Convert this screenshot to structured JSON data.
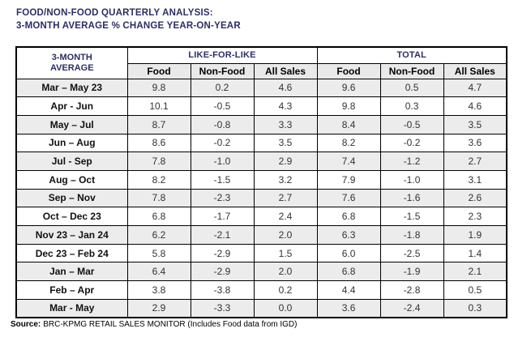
{
  "title": {
    "line1": "FOOD/NON-FOOD QUARTERLY ANALYSIS:",
    "line2": "3-MONTH AVERAGE % CHANGE YEAR-ON-YEAR"
  },
  "table": {
    "corner": {
      "line1": "3-MONTH",
      "line2": "AVERAGE"
    },
    "groups": [
      "LIKE-FOR-LIKE",
      "TOTAL"
    ],
    "sub_headers": [
      "Food",
      "Non-Food",
      "All Sales",
      "Food",
      "Non-Food",
      "All Sales"
    ],
    "rows": [
      {
        "label": "Mar – May 23",
        "values": [
          "9.8",
          "0.2",
          "4.6",
          "9.6",
          "0.5",
          "4.7"
        ]
      },
      {
        "label": "Apr - Jun",
        "values": [
          "10.1",
          "-0.5",
          "4.3",
          "9.8",
          "0.3",
          "4.6"
        ]
      },
      {
        "label": "May – Jul",
        "values": [
          "8.7",
          "-0.8",
          "3.3",
          "8.4",
          "-0.5",
          "3.5"
        ]
      },
      {
        "label": "Jun – Aug",
        "values": [
          "8.6",
          "-0.2",
          "3.5",
          "8.2",
          "-0.2",
          "3.6"
        ]
      },
      {
        "label": "Jul - Sep",
        "values": [
          "7.8",
          "-1.0",
          "2.9",
          "7.4",
          "-1.2",
          "2.7"
        ]
      },
      {
        "label": "Aug – Oct",
        "values": [
          "8.2",
          "-1.5",
          "3.2",
          "7.9",
          "-1.0",
          "3.1"
        ]
      },
      {
        "label": "Sep – Nov",
        "values": [
          "7.8",
          "-2.3",
          "2.7",
          "7.6",
          "-1.6",
          "2.6"
        ]
      },
      {
        "label": "Oct – Dec 23",
        "values": [
          "6.8",
          "-1.7",
          "2.4",
          "6.8",
          "-1.5",
          "2.3"
        ]
      },
      {
        "label": "Nov 23 – Jan 24",
        "values": [
          "6.2",
          "-2.1",
          "2.0",
          "6.3",
          "-1.8",
          "1.9"
        ]
      },
      {
        "label": "Dec 23 – Feb 24",
        "values": [
          "5.8",
          "-2.9",
          "1.5",
          "6.0",
          "-2.5",
          "1.4"
        ]
      },
      {
        "label": "Jan – Mar",
        "values": [
          "6.4",
          "-2.9",
          "2.0",
          "6.8",
          "-1.9",
          "2.1"
        ]
      },
      {
        "label": "Feb – Apr",
        "values": [
          "3.8",
          "-3.8",
          "0.2",
          "4.4",
          "-2.8",
          "0.5"
        ]
      },
      {
        "label": "Mar - May",
        "values": [
          "2.9",
          "-3.3",
          "0.0",
          "3.6",
          "-2.4",
          "0.3"
        ]
      }
    ]
  },
  "source": {
    "prefix": "Source:",
    "text": "BRC-KPMG RETAIL SALES MONITOR (Includes Food data from IGD)"
  },
  "colors": {
    "heading": "#2d2d66",
    "row_stripe": "#ececec",
    "subheader_bg": "#e9e9e9",
    "border": "#000000"
  }
}
